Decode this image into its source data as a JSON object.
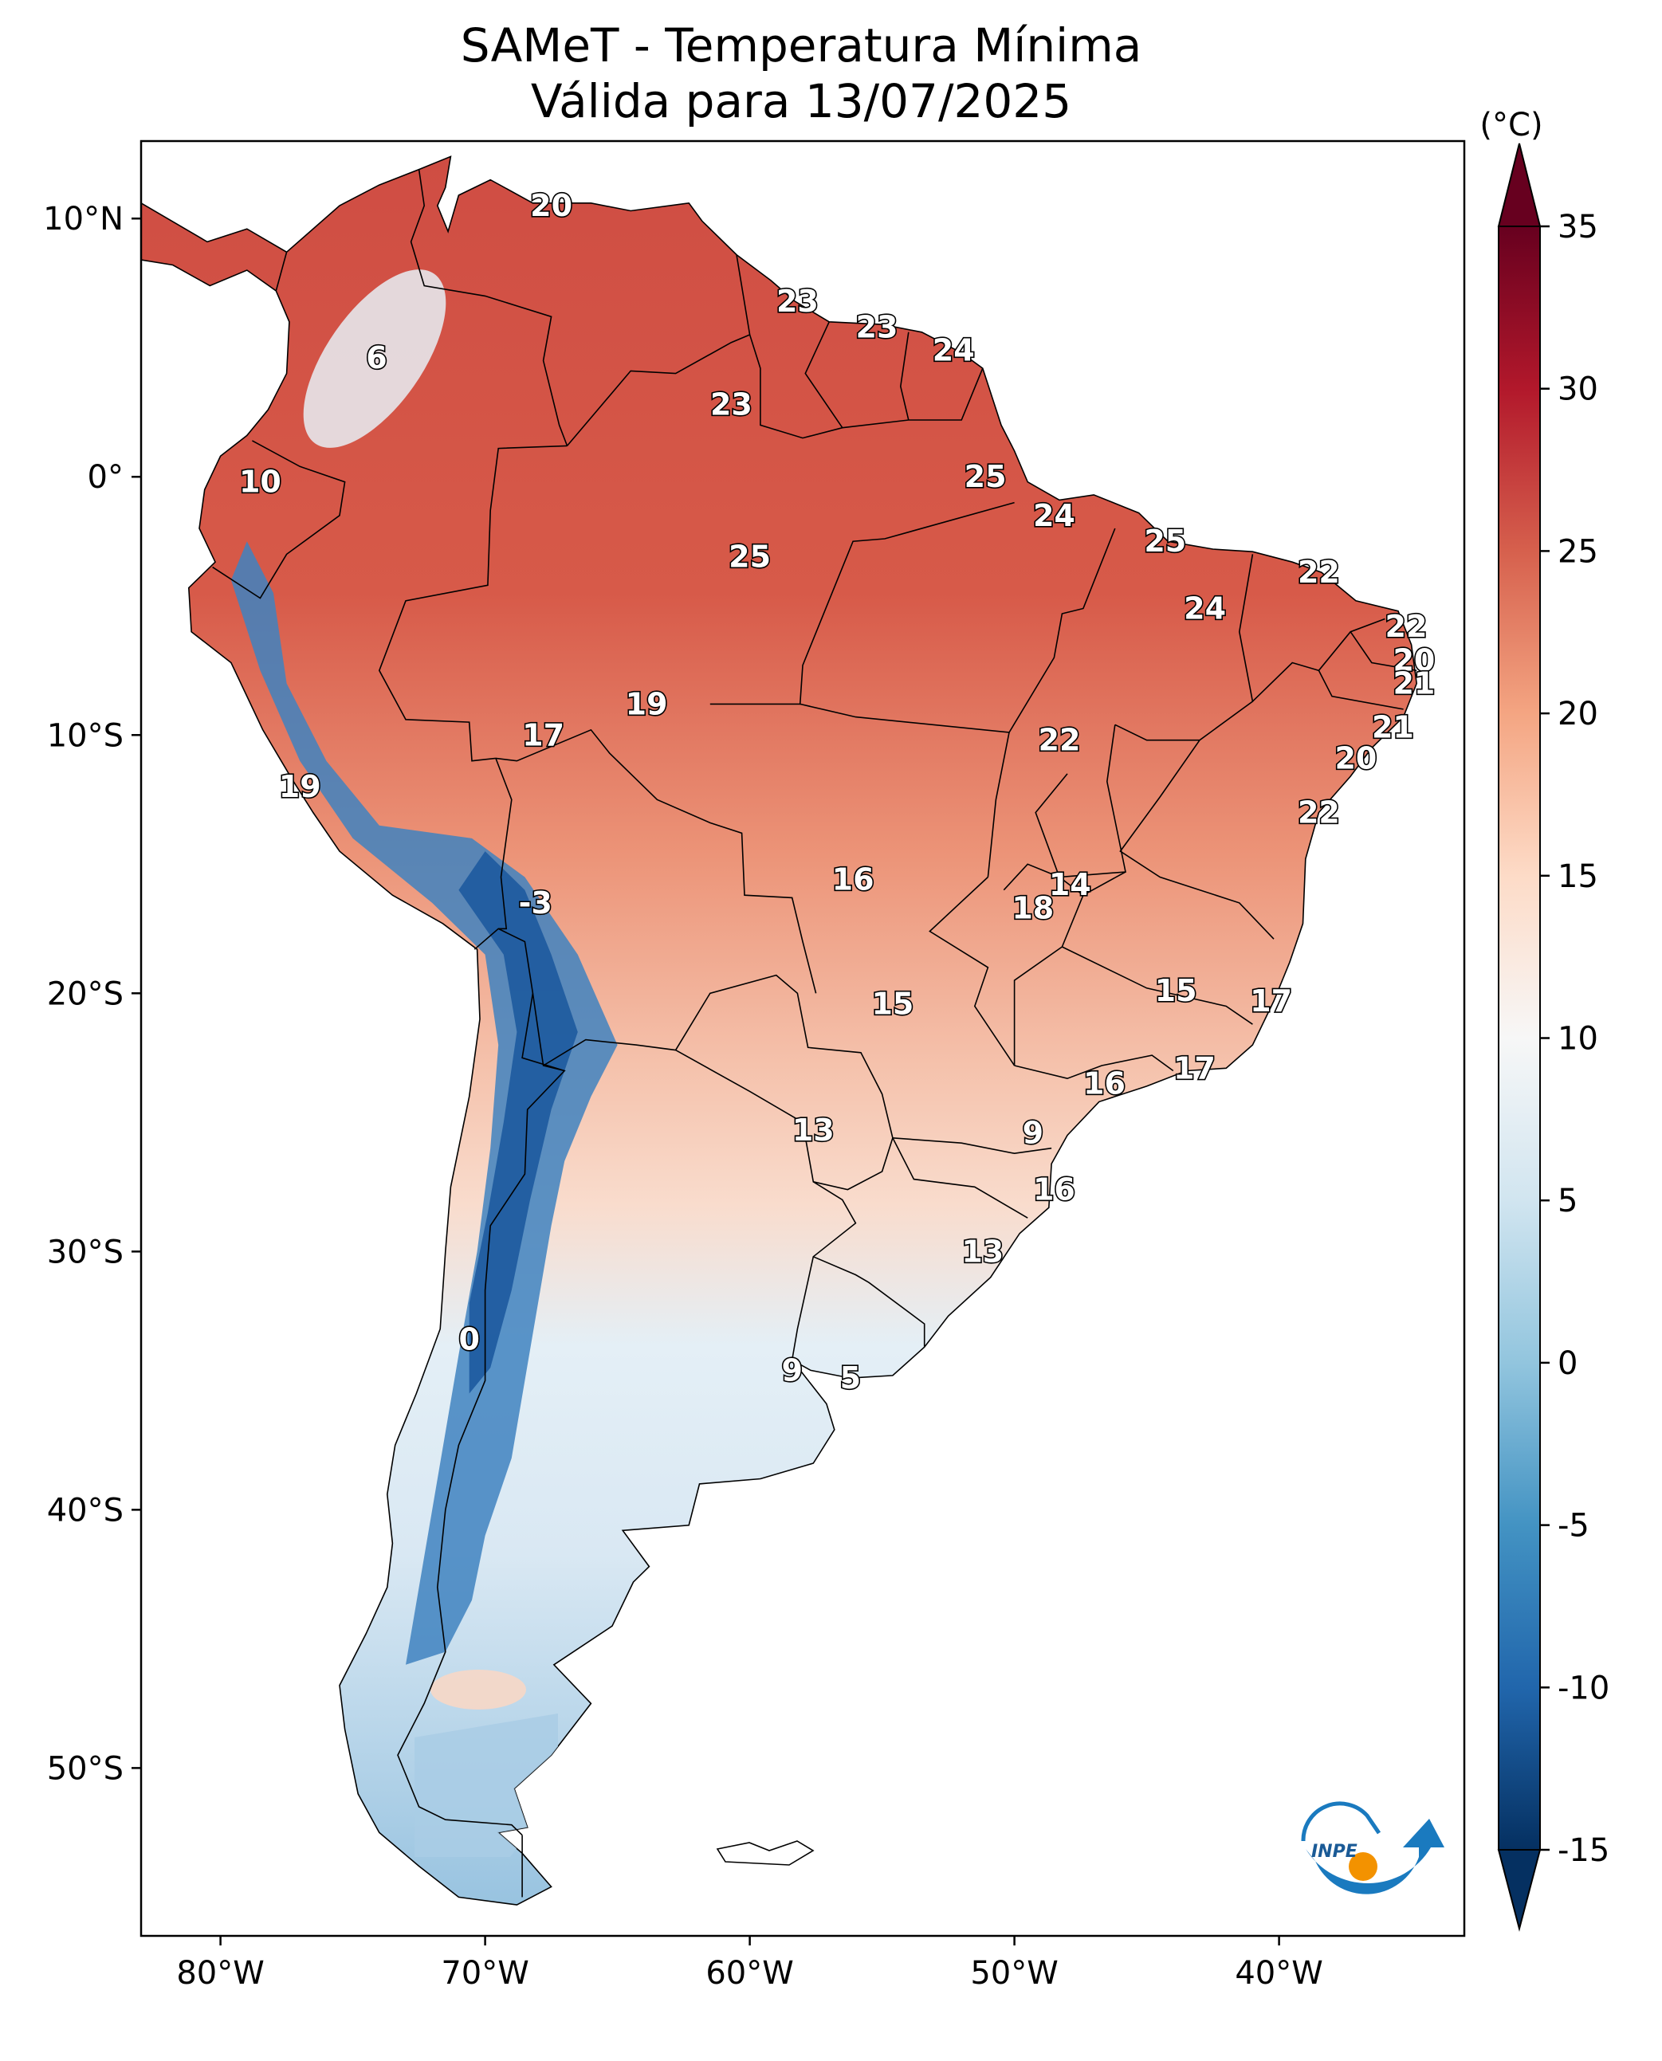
{
  "title": {
    "line1": "SAMeT - Temperatura Mínima",
    "line2": "Válida para 13/07/2025"
  },
  "axes": {
    "lon_ticks": [
      "80°W",
      "70°W",
      "60°W",
      "50°W",
      "40°W"
    ],
    "lat_ticks": [
      "10°N",
      "0°",
      "10°S",
      "20°S",
      "30°S",
      "40°S",
      "50°S"
    ]
  },
  "colorbar": {
    "unit": "(°C)",
    "ticks": [
      "35",
      "30",
      "25",
      "20",
      "15",
      "10",
      "5",
      "0",
      "-5",
      "-10",
      "-15"
    ],
    "min": -15,
    "max": 35,
    "extend": "both",
    "colors": [
      "#053061",
      "#2166ac",
      "#4393c3",
      "#92c5de",
      "#d1e5f0",
      "#f7f7f7",
      "#fddbc7",
      "#f4a582",
      "#d6604d",
      "#b2182b",
      "#67001f"
    ]
  },
  "logo": {
    "text": "INPE",
    "colors": {
      "blue": "#1a7abf",
      "orange": "#f39200"
    }
  },
  "colors": {
    "land_warm": "#d5584a",
    "land_mild": "#f3b49b",
    "land_cool": "#e2eef6",
    "land_cold": "#4d8fc8",
    "andes_cold": "#1f5fa8",
    "border": "#000000"
  },
  "city_labels": [
    {
      "value": "20",
      "lon": -67.5,
      "lat": 10.5
    },
    {
      "value": "6",
      "lon": -74.1,
      "lat": 4.6
    },
    {
      "value": "23",
      "lon": -58.2,
      "lat": 6.8
    },
    {
      "value": "23",
      "lon": -55.2,
      "lat": 5.8
    },
    {
      "value": "24",
      "lon": -52.3,
      "lat": 4.9
    },
    {
      "value": "23",
      "lon": -60.7,
      "lat": 2.8
    },
    {
      "value": "10",
      "lon": -78.5,
      "lat": -0.2
    },
    {
      "value": "25",
      "lon": -51.1,
      "lat": 0.0
    },
    {
      "value": "24",
      "lon": -48.5,
      "lat": -1.5
    },
    {
      "value": "25",
      "lon": -44.3,
      "lat": -2.5
    },
    {
      "value": "25",
      "lon": -60.0,
      "lat": -3.1
    },
    {
      "value": "22",
      "lon": -38.5,
      "lat": -3.7
    },
    {
      "value": "24",
      "lon": -42.8,
      "lat": -5.1
    },
    {
      "value": "22",
      "lon": -35.2,
      "lat": -5.8
    },
    {
      "value": "20",
      "lon": -34.9,
      "lat": -7.1
    },
    {
      "value": "21",
      "lon": -34.9,
      "lat": -8.0
    },
    {
      "value": "21",
      "lon": -35.7,
      "lat": -9.7
    },
    {
      "value": "20",
      "lon": -37.1,
      "lat": -10.9
    },
    {
      "value": "19",
      "lon": -63.9,
      "lat": -8.8
    },
    {
      "value": "17",
      "lon": -67.8,
      "lat": -10.0
    },
    {
      "value": "22",
      "lon": -48.3,
      "lat": -10.2
    },
    {
      "value": "19",
      "lon": -77.0,
      "lat": -12.0
    },
    {
      "value": "22",
      "lon": -38.5,
      "lat": -13.0
    },
    {
      "value": "16",
      "lon": -56.1,
      "lat": -15.6
    },
    {
      "value": "14",
      "lon": -47.9,
      "lat": -15.8
    },
    {
      "value": "18",
      "lon": -49.3,
      "lat": -16.7
    },
    {
      "value": "-3",
      "lon": -68.1,
      "lat": -16.5
    },
    {
      "value": "15",
      "lon": -54.6,
      "lat": -20.4
    },
    {
      "value": "15",
      "lon": -43.9,
      "lat": -19.9
    },
    {
      "value": "17",
      "lon": -40.3,
      "lat": -20.3
    },
    {
      "value": "17",
      "lon": -43.2,
      "lat": -22.9
    },
    {
      "value": "16",
      "lon": -46.6,
      "lat": -23.5
    },
    {
      "value": "13",
      "lon": -57.6,
      "lat": -25.3
    },
    {
      "value": "9",
      "lon": -49.3,
      "lat": -25.4
    },
    {
      "value": "16",
      "lon": -48.5,
      "lat": -27.6
    },
    {
      "value": "13",
      "lon": -51.2,
      "lat": -30.0
    },
    {
      "value": "0",
      "lon": -70.6,
      "lat": -33.4
    },
    {
      "value": "9",
      "lon": -58.4,
      "lat": -34.6
    },
    {
      "value": "5",
      "lon": -56.2,
      "lat": -34.9
    }
  ]
}
